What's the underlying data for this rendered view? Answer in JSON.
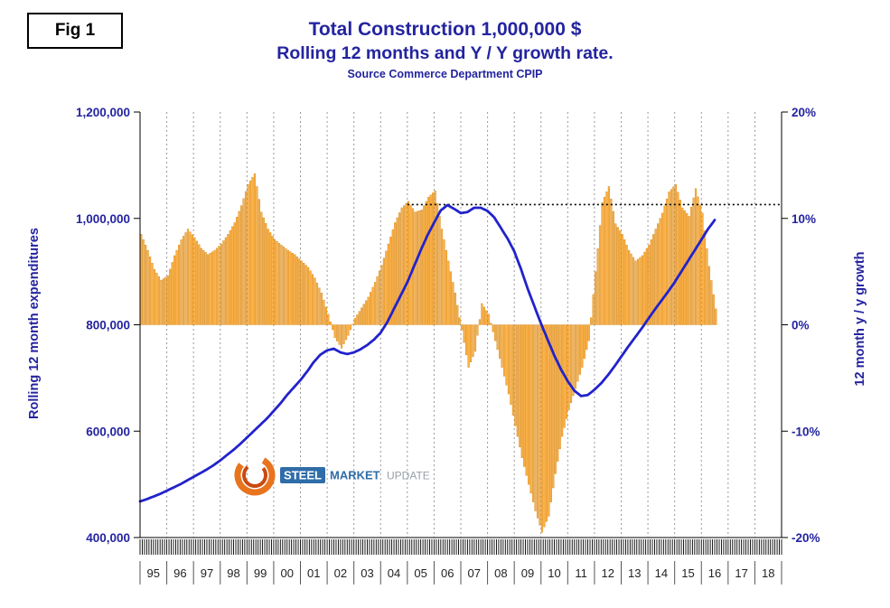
{
  "fig_label": "Fig 1",
  "chart_data": {
    "type": "combo",
    "title": "Total Construction 1,000,000 $",
    "subtitle": "Rolling 12 months and Y / Y growth rate.",
    "source": "Source Commerce Department CPIP",
    "grid": "vertical dashed yearly gridlines, no horizontal gridlines",
    "legend_position": "none",
    "colors": {
      "bar_fill": "#FBB045",
      "bar_stroke": "#D4881C",
      "line": "#2222CC",
      "text_navy": "#2424A0",
      "grid": "#999999"
    },
    "left_axis": {
      "label": "Rolling 12 month expenditures",
      "min": 400000,
      "max": 1200000,
      "ticks": [
        {
          "value": 1200000,
          "label": "1,200,000"
        },
        {
          "value": 1000000,
          "label": "1,000,000"
        },
        {
          "value": 800000,
          "label": "800,000"
        },
        {
          "value": 600000,
          "label": "600,000"
        },
        {
          "value": 400000,
          "label": "400,000"
        }
      ]
    },
    "right_axis": {
      "label": "12 month y / y growth",
      "min": -20,
      "max": 20,
      "ticks": [
        {
          "value": 20,
          "label": "20%"
        },
        {
          "value": 10,
          "label": "10%"
        },
        {
          "value": 0,
          "label": "0%"
        },
        {
          "value": -10,
          "label": "-10%"
        },
        {
          "value": -20,
          "label": "-20%"
        }
      ]
    },
    "x_axis": {
      "min": 1995,
      "max": 2019,
      "year_labels": [
        "95",
        "96",
        "97",
        "98",
        "99",
        "00",
        "01",
        "02",
        "03",
        "04",
        "05",
        "06",
        "07",
        "08",
        "09",
        "10",
        "11",
        "12",
        "13",
        "14",
        "15",
        "16",
        "17",
        "18"
      ]
    },
    "reference_line": {
      "axis": "right",
      "value": 11.3,
      "x_start": 2005.0,
      "x_end": 2019.0,
      "style": "dotted",
      "color": "#000000"
    },
    "resolution_note": "series digitized from the plot at quarterly resolution; bars rendered monthly by linear interpolation",
    "series": [
      {
        "name": "Rolling 12 month expenditures",
        "type": "line",
        "axis": "left",
        "color": "#2222CC",
        "points": [
          [
            1995.0,
            468000
          ],
          [
            1995.25,
            472000
          ],
          [
            1995.5,
            477000
          ],
          [
            1995.75,
            482000
          ],
          [
            1996.0,
            488000
          ],
          [
            1996.25,
            494000
          ],
          [
            1996.5,
            500000
          ],
          [
            1996.75,
            507000
          ],
          [
            1997.0,
            514000
          ],
          [
            1997.25,
            521000
          ],
          [
            1997.5,
            528000
          ],
          [
            1997.75,
            536000
          ],
          [
            1998.0,
            545000
          ],
          [
            1998.25,
            555000
          ],
          [
            1998.5,
            565000
          ],
          [
            1998.75,
            576000
          ],
          [
            1999.0,
            588000
          ],
          [
            1999.25,
            600000
          ],
          [
            1999.5,
            612000
          ],
          [
            1999.75,
            624000
          ],
          [
            2000.0,
            638000
          ],
          [
            2000.25,
            652000
          ],
          [
            2000.5,
            668000
          ],
          [
            2000.75,
            682000
          ],
          [
            2001.0,
            696000
          ],
          [
            2001.25,
            712000
          ],
          [
            2001.5,
            730000
          ],
          [
            2001.75,
            744000
          ],
          [
            2002.0,
            752000
          ],
          [
            2002.25,
            755000
          ],
          [
            2002.5,
            748000
          ],
          [
            2002.75,
            745000
          ],
          [
            2003.0,
            748000
          ],
          [
            2003.25,
            754000
          ],
          [
            2003.5,
            762000
          ],
          [
            2003.75,
            772000
          ],
          [
            2004.0,
            785000
          ],
          [
            2004.25,
            805000
          ],
          [
            2004.5,
            830000
          ],
          [
            2004.75,
            855000
          ],
          [
            2005.0,
            880000
          ],
          [
            2005.25,
            910000
          ],
          [
            2005.5,
            940000
          ],
          [
            2005.75,
            968000
          ],
          [
            2006.0,
            992000
          ],
          [
            2006.25,
            1015000
          ],
          [
            2006.5,
            1025000
          ],
          [
            2006.75,
            1018000
          ],
          [
            2007.0,
            1010000
          ],
          [
            2007.25,
            1012000
          ],
          [
            2007.5,
            1020000
          ],
          [
            2007.75,
            1020000
          ],
          [
            2008.0,
            1014000
          ],
          [
            2008.25,
            1002000
          ],
          [
            2008.5,
            982000
          ],
          [
            2008.75,
            962000
          ],
          [
            2009.0,
            938000
          ],
          [
            2009.25,
            905000
          ],
          [
            2009.5,
            868000
          ],
          [
            2009.75,
            835000
          ],
          [
            2010.0,
            802000
          ],
          [
            2010.25,
            772000
          ],
          [
            2010.5,
            742000
          ],
          [
            2010.75,
            716000
          ],
          [
            2011.0,
            694000
          ],
          [
            2011.25,
            676000
          ],
          [
            2011.5,
            666000
          ],
          [
            2011.75,
            668000
          ],
          [
            2012.0,
            678000
          ],
          [
            2012.25,
            690000
          ],
          [
            2012.5,
            705000
          ],
          [
            2012.75,
            722000
          ],
          [
            2013.0,
            740000
          ],
          [
            2013.25,
            758000
          ],
          [
            2013.5,
            775000
          ],
          [
            2013.75,
            792000
          ],
          [
            2014.0,
            810000
          ],
          [
            2014.25,
            828000
          ],
          [
            2014.5,
            845000
          ],
          [
            2014.75,
            862000
          ],
          [
            2015.0,
            880000
          ],
          [
            2015.25,
            900000
          ],
          [
            2015.5,
            920000
          ],
          [
            2015.75,
            940000
          ],
          [
            2016.0,
            960000
          ],
          [
            2016.25,
            980000
          ],
          [
            2016.5,
            997000
          ]
        ]
      },
      {
        "name": "12 month y / y growth",
        "type": "bar",
        "axis": "right",
        "color": "#FBB045",
        "points": [
          [
            1995.0,
            8.5
          ],
          [
            1995.25,
            7.0
          ],
          [
            1995.5,
            5.2
          ],
          [
            1995.75,
            4.2
          ],
          [
            1996.0,
            4.6
          ],
          [
            1996.25,
            6.5
          ],
          [
            1996.5,
            8.0
          ],
          [
            1996.75,
            9.0
          ],
          [
            1997.0,
            8.2
          ],
          [
            1997.25,
            7.2
          ],
          [
            1997.5,
            6.6
          ],
          [
            1997.75,
            7.0
          ],
          [
            1998.0,
            7.6
          ],
          [
            1998.25,
            8.5
          ],
          [
            1998.5,
            9.6
          ],
          [
            1998.75,
            11.2
          ],
          [
            1999.0,
            13.2
          ],
          [
            1999.25,
            14.2
          ],
          [
            1999.5,
            10.6
          ],
          [
            1999.75,
            9.0
          ],
          [
            2000.0,
            8.0
          ],
          [
            2000.25,
            7.5
          ],
          [
            2000.5,
            7.0
          ],
          [
            2000.75,
            6.6
          ],
          [
            2001.0,
            6.0
          ],
          [
            2001.25,
            5.4
          ],
          [
            2001.5,
            4.4
          ],
          [
            2001.75,
            3.0
          ],
          [
            2002.0,
            1.0
          ],
          [
            2002.25,
            -1.2
          ],
          [
            2002.5,
            -2.2
          ],
          [
            2002.75,
            -1.0
          ],
          [
            2003.0,
            0.6
          ],
          [
            2003.25,
            1.6
          ],
          [
            2003.5,
            2.6
          ],
          [
            2003.75,
            4.0
          ],
          [
            2004.0,
            5.6
          ],
          [
            2004.25,
            7.6
          ],
          [
            2004.5,
            9.6
          ],
          [
            2004.75,
            11.0
          ],
          [
            2005.0,
            11.6
          ],
          [
            2005.25,
            10.6
          ],
          [
            2005.5,
            10.8
          ],
          [
            2005.75,
            12.0
          ],
          [
            2006.0,
            12.6
          ],
          [
            2006.25,
            9.0
          ],
          [
            2006.5,
            6.0
          ],
          [
            2006.75,
            3.0
          ],
          [
            2007.0,
            -0.5
          ],
          [
            2007.25,
            -4.0
          ],
          [
            2007.5,
            -2.5
          ],
          [
            2007.75,
            2.0
          ],
          [
            2008.0,
            1.0
          ],
          [
            2008.25,
            -1.5
          ],
          [
            2008.5,
            -4.0
          ],
          [
            2008.75,
            -6.5
          ],
          [
            2009.0,
            -9.5
          ],
          [
            2009.25,
            -12.5
          ],
          [
            2009.5,
            -15.0
          ],
          [
            2009.75,
            -17.5
          ],
          [
            2010.0,
            -19.5
          ],
          [
            2010.25,
            -18.0
          ],
          [
            2010.5,
            -14.0
          ],
          [
            2010.75,
            -10.5
          ],
          [
            2011.0,
            -8.0
          ],
          [
            2011.25,
            -6.0
          ],
          [
            2011.5,
            -4.0
          ],
          [
            2011.75,
            -1.5
          ],
          [
            2012.0,
            5.0
          ],
          [
            2012.25,
            11.5
          ],
          [
            2012.5,
            13.0
          ],
          [
            2012.75,
            9.5
          ],
          [
            2013.0,
            8.5
          ],
          [
            2013.25,
            7.0
          ],
          [
            2013.5,
            6.0
          ],
          [
            2013.75,
            6.5
          ],
          [
            2014.0,
            7.5
          ],
          [
            2014.25,
            9.0
          ],
          [
            2014.5,
            10.5
          ],
          [
            2014.75,
            12.5
          ],
          [
            2015.0,
            13.2
          ],
          [
            2015.25,
            11.0
          ],
          [
            2015.5,
            10.2
          ],
          [
            2015.75,
            12.8
          ],
          [
            2016.0,
            10.5
          ],
          [
            2016.25,
            5.5
          ],
          [
            2016.5,
            1.5
          ]
        ]
      }
    ],
    "logo": {
      "parts": [
        "STEEL",
        "MARKET",
        "UPDATE"
      ]
    }
  }
}
